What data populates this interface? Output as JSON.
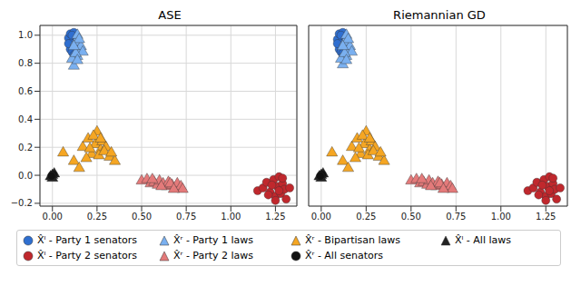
{
  "chart_data": [
    {
      "type": "scatter",
      "title": "ASE",
      "grid": true,
      "legend": "bottom",
      "xlim": [
        -0.07,
        1.37
      ],
      "ylim": [
        -0.22,
        1.07
      ],
      "xticks": [
        {
          "value": 0,
          "label": "0.00"
        },
        {
          "value": 0.25,
          "label": "0.25"
        },
        {
          "value": 0.5,
          "label": "0.50"
        },
        {
          "value": 0.75,
          "label": "0.75"
        },
        {
          "value": 1,
          "label": "1.00"
        },
        {
          "value": 1.25,
          "label": "1.25"
        }
      ],
      "yticks": [
        {
          "value": -0.2,
          "label": "−0.2"
        },
        {
          "value": 0,
          "label": "0.0"
        },
        {
          "value": 0.2,
          "label": "0.2"
        },
        {
          "value": 0.4,
          "label": "0.4"
        },
        {
          "value": 0.6,
          "label": "0.6"
        },
        {
          "value": 0.8,
          "label": "0.8"
        },
        {
          "value": 1,
          "label": "1.0"
        }
      ],
      "series": [
        {
          "name": "X̂ˡ - Party 1 senators",
          "color": "#2f6fd0",
          "marker": "circle",
          "x": [
            0.09,
            0.1,
            0.11,
            0.12,
            0.13,
            0.1,
            0.12,
            0.14,
            0.11,
            0.13,
            0.09,
            0.12,
            0.15,
            0.11
          ],
          "y": [
            0.98,
            1.01,
            0.95,
            0.92,
            0.99,
            0.9,
            1.02,
            0.96,
            0.88,
            0.93,
            0.94,
            0.86,
            0.91,
            1.0
          ]
        },
        {
          "name": "X̂ʳ - Party 1 laws",
          "color": "#7ab0f0",
          "marker": "triangle",
          "x": [
            0.12,
            0.14,
            0.15,
            0.13,
            0.16,
            0.11,
            0.14,
            0.17,
            0.13,
            0.15,
            0.12,
            0.14
          ],
          "y": [
            0.78,
            0.85,
            0.9,
            0.95,
            0.92,
            0.83,
            1.0,
            0.88,
            0.87,
            0.97,
            0.92,
            0.82
          ]
        },
        {
          "name": "X̂ʳ - Bipartisan laws",
          "color": "#f5a623",
          "marker": "triangle",
          "x": [
            0.06,
            0.12,
            0.17,
            0.2,
            0.22,
            0.24,
            0.25,
            0.27,
            0.28,
            0.3,
            0.32,
            0.35,
            0.19,
            0.23,
            0.26,
            0.29,
            0.21,
            0.33,
            0.15,
            0.27
          ],
          "y": [
            0.16,
            0.1,
            0.2,
            0.26,
            0.15,
            0.22,
            0.31,
            0.18,
            0.24,
            0.2,
            0.13,
            0.1,
            0.12,
            0.28,
            0.14,
            0.17,
            0.19,
            0.16,
            0.05,
            0.26
          ]
        },
        {
          "name": "X̂ˡ - All laws",
          "color": "#222222",
          "marker": "triangle",
          "x": [
            0.0,
            0.01,
            -0.01,
            0.0
          ],
          "y": [
            0.0,
            0.01,
            -0.01,
            -0.02
          ]
        },
        {
          "name": "X̂ˡ - Party 2 senators",
          "color": "#c0282d",
          "marker": "circle",
          "x": [
            1.15,
            1.18,
            1.2,
            1.22,
            1.24,
            1.25,
            1.26,
            1.27,
            1.28,
            1.29,
            1.3,
            1.31,
            1.33,
            1.23,
            1.27,
            1.25,
            1.29,
            1.21
          ],
          "y": [
            -0.11,
            -0.09,
            -0.05,
            -0.12,
            -0.03,
            -0.15,
            -0.08,
            -0.01,
            -0.13,
            -0.06,
            -0.1,
            -0.17,
            -0.09,
            -0.07,
            -0.11,
            -0.18,
            -0.02,
            -0.14
          ]
        },
        {
          "name": "X̂ʳ - Party 2 laws",
          "color": "#e47a7a",
          "marker": "triangle",
          "x": [
            0.5,
            0.53,
            0.55,
            0.57,
            0.59,
            0.6,
            0.62,
            0.64,
            0.65,
            0.67,
            0.69,
            0.7,
            0.72,
            0.73,
            0.56,
            0.61,
            0.66,
            0.68
          ],
          "y": [
            -0.04,
            -0.03,
            -0.06,
            -0.05,
            -0.07,
            -0.04,
            -0.06,
            -0.08,
            -0.05,
            -0.07,
            -0.09,
            -0.06,
            -0.08,
            -0.1,
            -0.03,
            -0.08,
            -0.06,
            -0.1
          ]
        },
        {
          "name": "X̂ʳ - All senators",
          "color": "#111111",
          "marker": "circle",
          "x": [
            0.0,
            0.005,
            -0.005
          ],
          "y": [
            0.0,
            0.005,
            -0.005
          ]
        }
      ]
    },
    {
      "type": "scatter",
      "title": "Riemannian GD",
      "grid": true,
      "tick_labels": "x",
      "xlim": [
        -0.07,
        1.37
      ],
      "ylim": [
        -0.22,
        1.07
      ],
      "xticks": [
        {
          "value": 0,
          "label": "0.00"
        },
        {
          "value": 0.25,
          "label": "0.25"
        },
        {
          "value": 0.5,
          "label": "0.50"
        },
        {
          "value": 0.75,
          "label": "0.75"
        },
        {
          "value": 1,
          "label": "1.00"
        },
        {
          "value": 1.25,
          "label": "1.25"
        }
      ],
      "yticks": [
        -0.2,
        0,
        0.2,
        0.4,
        0.6,
        0.8,
        1
      ],
      "series": [
        {
          "name": "X̂ˡ - Party 1 senators",
          "color": "#2f6fd0",
          "marker": "circle",
          "x": [
            0.09,
            0.1,
            0.11,
            0.12,
            0.13,
            0.1,
            0.12,
            0.14,
            0.11,
            0.13,
            0.09,
            0.12,
            0.15,
            0.11
          ],
          "y": [
            0.97,
            1.01,
            0.95,
            0.92,
            0.99,
            0.9,
            1.02,
            0.96,
            0.88,
            0.93,
            0.94,
            0.87,
            0.91,
            1.0
          ]
        },
        {
          "name": "X̂ʳ - Party 1 laws",
          "color": "#7ab0f0",
          "marker": "triangle",
          "x": [
            0.12,
            0.14,
            0.15,
            0.13,
            0.16,
            0.11,
            0.14,
            0.17,
            0.13,
            0.15,
            0.12,
            0.14
          ],
          "y": [
            0.79,
            0.85,
            0.9,
            0.95,
            0.92,
            0.83,
            1.0,
            0.88,
            0.87,
            0.97,
            0.92,
            0.82
          ]
        },
        {
          "name": "X̂ʳ - Bipartisan laws",
          "color": "#f5a623",
          "marker": "triangle",
          "x": [
            0.06,
            0.12,
            0.17,
            0.2,
            0.22,
            0.24,
            0.25,
            0.27,
            0.28,
            0.3,
            0.32,
            0.35,
            0.19,
            0.23,
            0.26,
            0.29,
            0.21,
            0.33,
            0.15,
            0.27
          ],
          "y": [
            0.16,
            0.1,
            0.2,
            0.26,
            0.15,
            0.22,
            0.31,
            0.18,
            0.24,
            0.2,
            0.13,
            0.1,
            0.12,
            0.28,
            0.14,
            0.17,
            0.19,
            0.16,
            0.05,
            0.26
          ]
        },
        {
          "name": "X̂ˡ - All laws",
          "color": "#222222",
          "marker": "triangle",
          "x": [
            0.0,
            0.01,
            -0.01,
            0.0
          ],
          "y": [
            0.0,
            0.01,
            -0.01,
            -0.02
          ]
        },
        {
          "name": "X̂ˡ - Party 2 senators",
          "color": "#c0282d",
          "marker": "circle",
          "x": [
            1.15,
            1.18,
            1.2,
            1.22,
            1.24,
            1.25,
            1.26,
            1.27,
            1.28,
            1.29,
            1.3,
            1.31,
            1.33,
            1.23,
            1.27,
            1.25,
            1.29,
            1.21
          ],
          "y": [
            -0.11,
            -0.09,
            -0.05,
            -0.12,
            -0.03,
            -0.15,
            -0.08,
            -0.01,
            -0.13,
            -0.06,
            -0.1,
            -0.17,
            -0.09,
            -0.07,
            -0.11,
            -0.18,
            -0.02,
            -0.14
          ]
        },
        {
          "name": "X̂ʳ - Party 2 laws",
          "color": "#e47a7a",
          "marker": "triangle",
          "x": [
            0.5,
            0.53,
            0.55,
            0.57,
            0.59,
            0.6,
            0.62,
            0.64,
            0.65,
            0.67,
            0.69,
            0.7,
            0.72,
            0.73,
            0.56,
            0.61,
            0.66,
            0.68
          ],
          "y": [
            -0.04,
            -0.03,
            -0.06,
            -0.05,
            -0.07,
            -0.04,
            -0.06,
            -0.08,
            -0.05,
            -0.07,
            -0.09,
            -0.06,
            -0.08,
            -0.1,
            -0.03,
            -0.08,
            -0.06,
            -0.1
          ]
        },
        {
          "name": "X̂ʳ - All senators",
          "color": "#111111",
          "marker": "circle",
          "x": [
            0.0,
            0.005,
            -0.005
          ],
          "y": [
            0.0,
            0.005,
            -0.005
          ]
        }
      ]
    }
  ]
}
